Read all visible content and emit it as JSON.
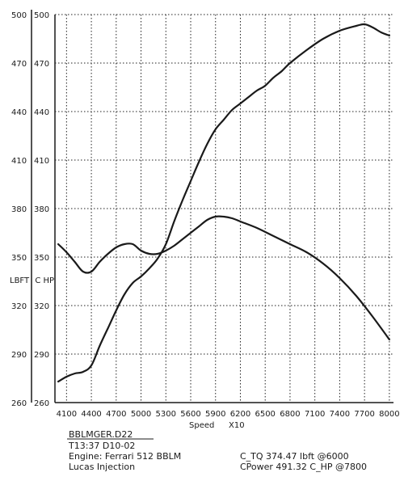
{
  "chart_data": {
    "type": "line",
    "x_unit_label": "Speed",
    "x_scale_label": "X10",
    "y_label_left": "LBFT",
    "y_label_right": "C HP",
    "x_ticks": [
      4100,
      4400,
      4700,
      5000,
      5300,
      5600,
      5900,
      6200,
      6500,
      6800,
      7100,
      7400,
      7700,
      8000
    ],
    "xlim": [
      3960,
      8050
    ],
    "y_ticks": [
      260,
      290,
      320,
      350,
      380,
      410,
      440,
      470,
      500
    ],
    "ylim": [
      260,
      500
    ],
    "grid": true,
    "series": [
      {
        "name": "Torque",
        "x": [
          4000,
          4100,
          4200,
          4300,
          4400,
          4500,
          4600,
          4700,
          4800,
          4900,
          5000,
          5100,
          5200,
          5300,
          5400,
          5500,
          5600,
          5700,
          5800,
          5900,
          6000,
          6100,
          6200,
          6400,
          6600,
          6800,
          7000,
          7200,
          7400,
          7600,
          7800,
          8000
        ],
        "y": [
          358,
          353,
          347,
          341,
          341,
          347,
          352,
          356,
          358,
          358,
          354,
          352,
          352,
          354,
          357,
          361,
          365,
          369,
          373,
          375,
          375,
          374,
          372,
          368,
          363,
          358,
          353,
          346,
          337,
          326,
          313,
          299
        ]
      },
      {
        "name": "Power",
        "x": [
          4000,
          4100,
          4200,
          4300,
          4400,
          4500,
          4600,
          4700,
          4800,
          4900,
          5000,
          5100,
          5200,
          5300,
          5400,
          5500,
          5600,
          5700,
          5800,
          5900,
          6000,
          6100,
          6200,
          6300,
          6400,
          6500,
          6600,
          6700,
          6800,
          7000,
          7200,
          7400,
          7600,
          7700,
          7800,
          7900,
          8000
        ],
        "y": [
          273,
          276,
          278,
          279,
          283,
          295,
          306,
          317,
          327,
          334,
          338,
          343,
          349,
          358,
          372,
          385,
          397,
          409,
          420,
          429,
          435,
          441,
          445,
          449,
          453,
          456,
          461,
          465,
          470,
          478,
          485,
          490,
          493,
          494,
          492,
          489,
          487
        ]
      }
    ]
  },
  "footer": {
    "file": "BBLMGER.D22",
    "timestamp": "T13:37  D10-02",
    "engine": "Engine:  Ferrari  512  BBLM",
    "injection": "Lucas Injection",
    "peak_torque": "C_TQ  374.47  lbft  @6000",
    "peak_power": "CPower  491.32  C_HP   @7800"
  }
}
